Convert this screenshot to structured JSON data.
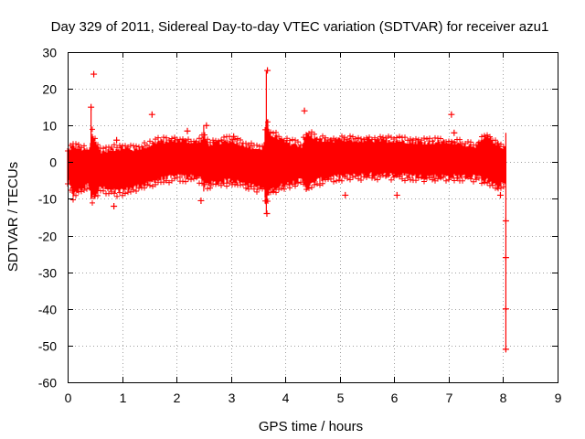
{
  "chart_data": {
    "type": "scatter",
    "title": "Day 329 of 2011, Sidereal Day-to-day VTEC variation (SDTVAR) for receiver azu1",
    "xlabel": "GPS time / hours",
    "ylabel": "SDTVAR / TECUs",
    "xlim": [
      0,
      9
    ],
    "ylim": [
      -60,
      30
    ],
    "xticks": [
      0,
      1,
      2,
      3,
      4,
      5,
      6,
      7,
      8,
      9
    ],
    "yticks": [
      30,
      20,
      10,
      0,
      -10,
      -20,
      -30,
      -40,
      -50,
      -60
    ],
    "grid": true,
    "marker": "+",
    "color": "#ff0000",
    "envelope": {
      "x": [
        0.0,
        0.1,
        0.2,
        0.3,
        0.4,
        0.45,
        0.5,
        0.6,
        0.8,
        1.0,
        1.2,
        1.5,
        1.6,
        2.0,
        2.4,
        2.5,
        2.6,
        3.0,
        3.5,
        3.6,
        3.65,
        3.7,
        4.0,
        4.3,
        4.4,
        4.6,
        5.0,
        5.5,
        6.0,
        6.5,
        7.0,
        7.5,
        7.7,
        7.9,
        8.0,
        8.05
      ],
      "upper": [
        3,
        4.5,
        4,
        3.5,
        3,
        8,
        6,
        3,
        3.5,
        4,
        3.5,
        4.5,
        5.5,
        6,
        5.5,
        7,
        5,
        6,
        3.5,
        4,
        12,
        8,
        5.5,
        4.5,
        8,
        6,
        6,
        6,
        6,
        5.5,
        5.5,
        4.5,
        7,
        5,
        4,
        4
      ],
      "lower": [
        -5,
        -9,
        -8,
        -7,
        -6,
        -10,
        -9,
        -7,
        -8,
        -8,
        -7,
        -6,
        -5,
        -4,
        -4,
        -6,
        -6,
        -5,
        -7,
        -7,
        -12,
        -8,
        -6,
        -5,
        -7,
        -5,
        -4,
        -3.5,
        -3.5,
        -4,
        -4,
        -4,
        -5,
        -7,
        -6,
        -6
      ]
    },
    "outliers": [
      {
        "x": 0.48,
        "y": 24
      },
      {
        "x": 0.43,
        "y": 15
      },
      {
        "x": 0.9,
        "y": 6
      },
      {
        "x": 0.85,
        "y": -12
      },
      {
        "x": 1.55,
        "y": 13
      },
      {
        "x": 2.2,
        "y": 8.5
      },
      {
        "x": 2.45,
        "y": -10.5
      },
      {
        "x": 2.55,
        "y": 10
      },
      {
        "x": 3.05,
        "y": 7
      },
      {
        "x": 3.67,
        "y": 25
      },
      {
        "x": 3.66,
        "y": -14
      },
      {
        "x": 4.35,
        "y": 14
      },
      {
        "x": 5.1,
        "y": -9
      },
      {
        "x": 6.05,
        "y": -9
      },
      {
        "x": 7.05,
        "y": 13
      },
      {
        "x": 7.1,
        "y": 8
      },
      {
        "x": 7.95,
        "y": -9
      },
      {
        "x": 8.05,
        "y": -16
      },
      {
        "x": 8.05,
        "y": -26
      },
      {
        "x": 8.05,
        "y": -40
      },
      {
        "x": 8.05,
        "y": -51
      }
    ],
    "spikes": [
      {
        "x": 0.43,
        "top": 15,
        "bottom": -10
      },
      {
        "x": 2.5,
        "top": 10,
        "bottom": -8
      },
      {
        "x": 3.65,
        "top": 25,
        "bottom": -14
      },
      {
        "x": 8.05,
        "top": 8,
        "bottom": -51
      }
    ]
  }
}
